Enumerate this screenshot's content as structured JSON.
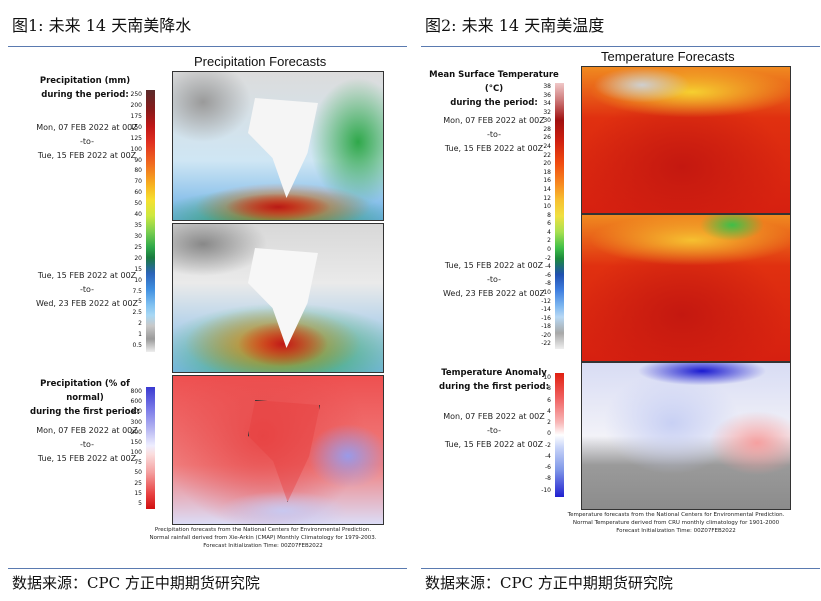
{
  "left": {
    "figure_title": "图1: 未来 14 天南美降水",
    "chart_title": "Precipitation Forecasts",
    "label_precip": [
      "Precipitation (mm)",
      "during the period:"
    ],
    "period1": [
      "Mon, 07 FEB 2022 at 00Z",
      "-to-",
      "Tue, 15 FEB 2022 at 00Z"
    ],
    "period2": [
      "Tue, 15 FEB 2022 at 00Z",
      "-to-",
      "Wed, 23 FEB 2022 at 00Z"
    ],
    "label_anom": [
      "Precipitation (% of normal)",
      "during the first period:"
    ],
    "period3": [
      "Mon, 07 FEB 2022 at 00Z",
      "-to-",
      "Tue, 15 FEB 2022 at 00Z"
    ],
    "ticks_precip": [
      "250",
      "200",
      "175",
      "150",
      "125",
      "100",
      "90",
      "80",
      "70",
      "60",
      "50",
      "40",
      "35",
      "30",
      "25",
      "20",
      "15",
      "10",
      "7.5",
      "5",
      "2.5",
      "2",
      "1",
      "0.5"
    ],
    "ticks_anom": [
      "800",
      "600",
      "400",
      "300",
      "200",
      "150",
      "100",
      "75",
      "50",
      "25",
      "15",
      "5"
    ],
    "footnote": [
      "Precipitation forecasts from the National Centers for Environmental Prediction.",
      "Normal rainfall derived from Xie-Arkin (CMAP) Monthly Climatology for 1979-2003.",
      "Forecast Initialization Time: 00Z07FEB2022"
    ],
    "source": "数据来源：CPC 方正中期期货研究院"
  },
  "right": {
    "figure_title": "图2: 未来 14 天南美温度",
    "chart_title": "Temperature Forecasts",
    "label_temp": [
      "Mean Surface Temperature (°C)",
      "during the period:"
    ],
    "period1": [
      "Mon, 07 FEB 2022 at 00Z",
      "-to-",
      "Tue, 15 FEB 2022 at 00Z"
    ],
    "period2": [
      "Tue, 15 FEB 2022 at 00Z",
      "-to-",
      "Wed, 23 FEB 2022 at 00Z"
    ],
    "label_anom": [
      "Temperature Anomaly",
      "during the first period:"
    ],
    "period3": [
      "Mon, 07 FEB 2022 at 00Z",
      "-to-",
      "Tue, 15 FEB 2022 at 00Z"
    ],
    "ticks_temp": [
      "38",
      "36",
      "34",
      "32",
      "30",
      "28",
      "26",
      "24",
      "22",
      "20",
      "18",
      "16",
      "14",
      "12",
      "10",
      "8",
      "6",
      "4",
      "2",
      "0",
      "-2",
      "-4",
      "-6",
      "-8",
      "-10",
      "-12",
      "-14",
      "-16",
      "-18",
      "-20",
      "-22"
    ],
    "ticks_anom": [
      "10",
      "8",
      "6",
      "4",
      "2",
      "0",
      "-2",
      "-4",
      "-6",
      "-8",
      "-10"
    ],
    "footnote": [
      "Temperature forecasts from the National Centers for Environmental Prediction.",
      "Normal Temperature derived from CRU monthly climatology for 1901-2000",
      "Forecast Initialization Time: 00Z07FEB2022"
    ],
    "source": "数据来源：CPC 方正中期期货研究院"
  }
}
